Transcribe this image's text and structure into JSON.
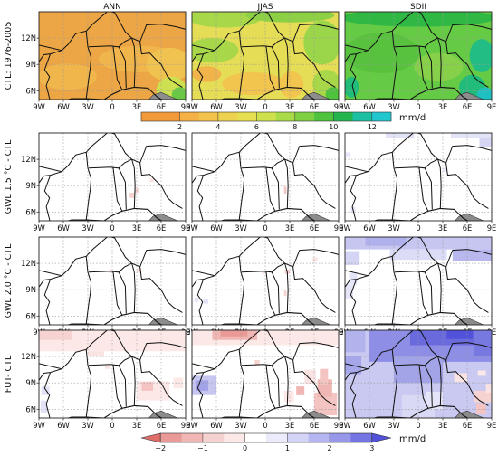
{
  "chart_data": {
    "type": "heatmap",
    "columns": [
      "ANN",
      "JJAS",
      "SDII"
    ],
    "rows": [
      {
        "label": "CTL: 1976-2005",
        "kind": "absolute"
      },
      {
        "label": "GWL 1.5 °C - CTL",
        "kind": "difference"
      },
      {
        "label": "GWL 2.0 °C - CTL",
        "kind": "difference"
      },
      {
        "label": "FUT- CTL",
        "kind": "difference"
      }
    ],
    "x_ticks": [
      "9W",
      "6W",
      "3W",
      "0",
      "3E",
      "6E",
      "9E"
    ],
    "y_ticks": [
      "12N",
      "9N",
      "6N"
    ],
    "x_range_deg": [
      -9,
      9
    ],
    "y_range_deg": [
      5,
      15
    ],
    "grid": "dotted",
    "colorbars": [
      {
        "position": "below row 1",
        "unit": "mm/d",
        "tick_labels": [
          "2",
          "4",
          "6",
          "8",
          "10",
          "12"
        ],
        "levels": [
          0,
          2,
          3,
          4,
          5,
          6,
          7,
          8,
          9,
          10,
          11,
          12,
          13
        ],
        "colors": [
          "#f29a3a",
          "#f5b145",
          "#f2c24a",
          "#eed24f",
          "#e6df50",
          "#cfe04c",
          "#a9da47",
          "#7fcf42",
          "#4fc23e",
          "#25b54f",
          "#1cbfa2",
          "#22c6cf"
        ],
        "extend": "none"
      },
      {
        "position": "below row 4",
        "unit": "mm/d",
        "tick_labels": [
          "−2",
          "−1",
          "0",
          "1",
          "2",
          "3"
        ],
        "levels": [
          -2.5,
          -2,
          -1.5,
          -1,
          -0.5,
          0,
          0.5,
          1,
          1.5,
          2,
          2.5,
          3,
          3.5
        ],
        "colors": [
          "#df6e6a",
          "#e99a96",
          "#efb6b3",
          "#f5d2d0",
          "#fbe8e7",
          "#ffffff",
          "#ebebfb",
          "#d4d4f6",
          "#b5b5f1",
          "#9797ea",
          "#7474e2",
          "#5151da"
        ],
        "extend": "both"
      }
    ],
    "panel_fields": [
      [
        {
          "base": "#eda645",
          "blobs": [
            {
              "cx": 3.5,
              "cy": 9.6,
              "rx": 5.2,
              "ry": 1.5,
              "c": "#f0b64c"
            },
            {
              "cx": -5.5,
              "cy": 7.6,
              "rx": 3.6,
              "ry": 1.5,
              "c": "#f0b64c"
            },
            {
              "cx": 7.0,
              "cy": 9.0,
              "rx": 2.8,
              "ry": 1.9,
              "c": "#f0c24f"
            },
            {
              "cx": 7.3,
              "cy": 6.0,
              "rx": 1.9,
              "ry": 1.6,
              "c": "#cde050"
            },
            {
              "cx": 8.3,
              "cy": 5.5,
              "rx": 1.0,
              "ry": 0.9,
              "c": "#6ac847"
            }
          ]
        },
        {
          "base": "#e5dd55",
          "blobs": [
            {
              "cx": -5,
              "cy": 14.3,
              "rx": 4.5,
              "ry": 1.1,
              "c": "#a8d84a"
            },
            {
              "cx": 3,
              "cy": 14.6,
              "rx": 5.5,
              "ry": 0.8,
              "c": "#8dd046"
            },
            {
              "cx": -6.5,
              "cy": 10.6,
              "rx": 3.2,
              "ry": 1.4,
              "c": "#a8d84a"
            },
            {
              "cx": 7.0,
              "cy": 11.5,
              "rx": 2.3,
              "ry": 2.5,
              "c": "#9bd64a"
            },
            {
              "cx": -1.5,
              "cy": 6.8,
              "rx": 3.8,
              "ry": 1.3,
              "c": "#f2c64e"
            },
            {
              "cx": 3.2,
              "cy": 6.7,
              "rx": 1.5,
              "ry": 1.5,
              "c": "#f2c64e"
            },
            {
              "cx": -7.2,
              "cy": 7.9,
              "rx": 1.8,
              "ry": 0.9,
              "c": "#f0b44a"
            },
            {
              "cx": 7.5,
              "cy": 6.8,
              "rx": 1.7,
              "ry": 1.6,
              "c": "#a8d84a"
            },
            {
              "cx": 8.3,
              "cy": 5.6,
              "rx": 0.9,
              "ry": 0.8,
              "c": "#4fc23e"
            }
          ]
        },
        {
          "base": "#66cb44",
          "blobs": [
            {
              "cx": 0,
              "cy": 14.3,
              "rx": 9.5,
              "ry": 1.0,
              "c": "#2fb843"
            },
            {
              "cx": -4.5,
              "cy": 10.3,
              "rx": 4.6,
              "ry": 2.3,
              "c": "#58c23f"
            },
            {
              "cx": 2.5,
              "cy": 8.7,
              "rx": 3.0,
              "ry": 1.6,
              "c": "#86d04a"
            },
            {
              "cx": 7.8,
              "cy": 10.0,
              "rx": 1.5,
              "ry": 1.9,
              "c": "#22bd84"
            },
            {
              "cx": 6.6,
              "cy": 6.4,
              "rx": 1.6,
              "ry": 1.4,
              "c": "#21bb7a"
            },
            {
              "cx": 8.2,
              "cy": 5.6,
              "rx": 1.0,
              "ry": 0.8,
              "c": "#1fc0c0"
            },
            {
              "cx": -8.2,
              "cy": 6.4,
              "rx": 0.9,
              "ry": 1.2,
              "c": "#21bb7a"
            }
          ]
        }
      ],
      [
        {
          "cells": [
            [
              2.1,
              7.6,
              0.6,
              0.6,
              "#f6d3d1"
            ],
            [
              2.8,
              8.2,
              0.5,
              0.5,
              "#f6d3d1"
            ],
            [
              4.6,
              9.4,
              0.5,
              0.4,
              "#f9e4e3"
            ]
          ]
        },
        {
          "cells": [
            [
              2.3,
              8.1,
              0.3,
              0.8,
              "#f3c7c5"
            ]
          ]
        },
        {
          "cells": [
            [
              -4.0,
              14.4,
              3.5,
              0.6,
              "#e3e3f8"
            ],
            [
              4.0,
              14.4,
              5.0,
              0.6,
              "#e3e3f8"
            ],
            [
              7.5,
              13.4,
              1.5,
              1.0,
              "#d6d6f4"
            ],
            [
              -8.9,
              12.2,
              0.6,
              0.6,
              "#e8e8fa"
            ],
            [
              -8.3,
              6.0,
              0.6,
              0.6,
              "#e8e8fa"
            ],
            [
              3.0,
              10.6,
              0.6,
              0.4,
              "#e8e8fa"
            ]
          ]
        }
      ],
      [
        {
          "cells": [
            [
              3.0,
              10.9,
              0.6,
              0.5,
              "#f9e4e3"
            ],
            [
              -0.4,
              10.9,
              0.5,
              0.4,
              "#f9e4e3"
            ]
          ]
        },
        {
          "cells": [
            [
              -8.7,
              7.6,
              0.5,
              0.5,
              "#e3e3f8"
            ],
            [
              -7.6,
              7.4,
              0.6,
              0.5,
              "#e3e3f8"
            ],
            [
              2.4,
              10.8,
              0.6,
              0.5,
              "#f6d3d1"
            ],
            [
              -0.4,
              10.8,
              0.5,
              0.4,
              "#f9e4e3"
            ],
            [
              5.8,
              12.2,
              0.6,
              0.5,
              "#f9e4e3"
            ],
            [
              2.3,
              8.3,
              0.3,
              0.6,
              "#f6d3d1"
            ]
          ]
        },
        {
          "cells": [
            [
              -9.0,
              13.6,
              18.0,
              1.4,
              "#c6c6f1"
            ],
            [
              -3.5,
              12.4,
              7.0,
              1.2,
              "#dcdcf6"
            ],
            [
              4.2,
              12.3,
              4.8,
              1.3,
              "#b8b8ee"
            ],
            [
              -9.0,
              11.8,
              1.8,
              1.6,
              "#d4d4f4"
            ],
            [
              -6.5,
              14.0,
              5.0,
              1.0,
              "#b0b0ec"
            ],
            [
              -9.0,
              8.0,
              1.0,
              1.6,
              "#e5e5f9"
            ],
            [
              -8.5,
              9.6,
              1.0,
              1.3,
              "#e5e5f9"
            ]
          ]
        }
      ],
      [
        {
          "cells": [
            [
              -9.0,
              12.6,
              18.0,
              2.4,
              "#fbe8e7"
            ],
            [
              -9.0,
              13.9,
              4.0,
              1.1,
              "#f6d3d1"
            ],
            [
              3.0,
              7.0,
              4.0,
              2.2,
              "#fbe8e7"
            ],
            [
              3.6,
              8.1,
              1.4,
              1.0,
              "#f3c4c2"
            ],
            [
              -8.7,
              7.6,
              1.0,
              1.0,
              "#e3e3f8"
            ],
            [
              -8.8,
              5.6,
              0.8,
              1.4,
              "#e3e3f8"
            ],
            [
              7.5,
              8.4,
              1.2,
              1.2,
              "#fbe8e7"
            ],
            [
              -3.0,
              12.0,
              2.0,
              0.6,
              "#f9e4e3"
            ],
            [
              -0.9,
              10.6,
              0.6,
              0.4,
              "#f9e4e3"
            ]
          ]
        },
        {
          "cells": [
            [
              -9.0,
              13.3,
              18.0,
              1.7,
              "#fbe8e7"
            ],
            [
              -6.5,
              13.9,
              5.5,
              1.1,
              "#efb6b3"
            ],
            [
              -5.5,
              14.3,
              3.3,
              0.7,
              "#e99a96"
            ],
            [
              -9.0,
              7.6,
              3.0,
              2.2,
              "#c6c6f1"
            ],
            [
              -8.5,
              8.1,
              1.5,
              1.2,
              "#a3a3e8"
            ],
            [
              -1.3,
              11.0,
              0.6,
              0.6,
              "#f6d3d1"
            ],
            [
              2.3,
              6.8,
              1.2,
              1.3,
              "#fbe8e7"
            ],
            [
              6.0,
              5.3,
              2.8,
              2.6,
              "#f3c4c2"
            ],
            [
              6.4,
              7.4,
              1.8,
              2.0,
              "#efb6b3"
            ],
            [
              6.7,
              8.8,
              1.0,
              1.8,
              "#f3c4c2"
            ],
            [
              4.8,
              8.9,
              1.4,
              1.6,
              "#f9e4e3"
            ],
            [
              3.8,
              7.6,
              1.0,
              1.0,
              "#efb6b3"
            ]
          ]
        },
        {
          "cells": [
            [
              -9.0,
              5.0,
              18.0,
              10.0,
              "#c9c9f2"
            ],
            [
              -6.0,
              11.4,
              15.0,
              3.6,
              "#8e8ee6"
            ],
            [
              -1.0,
              13.3,
              8.5,
              1.7,
              "#6a6add"
            ],
            [
              3.5,
              14.0,
              3.2,
              1.0,
              "#5151da"
            ],
            [
              6.8,
              12.0,
              2.2,
              3.0,
              "#7878e1"
            ],
            [
              -9.0,
              10.0,
              2.0,
              2.0,
              "#a6a6ea"
            ],
            [
              -9.0,
              12.5,
              2.5,
              2.5,
              "#b2b2ec"
            ],
            [
              -3.0,
              9.0,
              6.0,
              3.0,
              "#a3a3e8"
            ],
            [
              -2.0,
              5.0,
              4.0,
              2.6,
              "#d9d9f6"
            ],
            [
              1.0,
              6.0,
              2.0,
              2.0,
              "#e5e5f9"
            ],
            [
              6.8,
              6.8,
              2.2,
              1.3,
              "#f6d3d1"
            ],
            [
              7.1,
              5.4,
              1.2,
              1.3,
              "#f3c4c2"
            ],
            [
              4.4,
              9.1,
              1.6,
              1.0,
              "#f9e4e3"
            ],
            [
              7.3,
              9.8,
              1.0,
              0.6,
              "#fbe8e7"
            ],
            [
              8.3,
              7.9,
              0.7,
              1.0,
              "#f9e4e3"
            ]
          ]
        }
      ]
    ]
  }
}
